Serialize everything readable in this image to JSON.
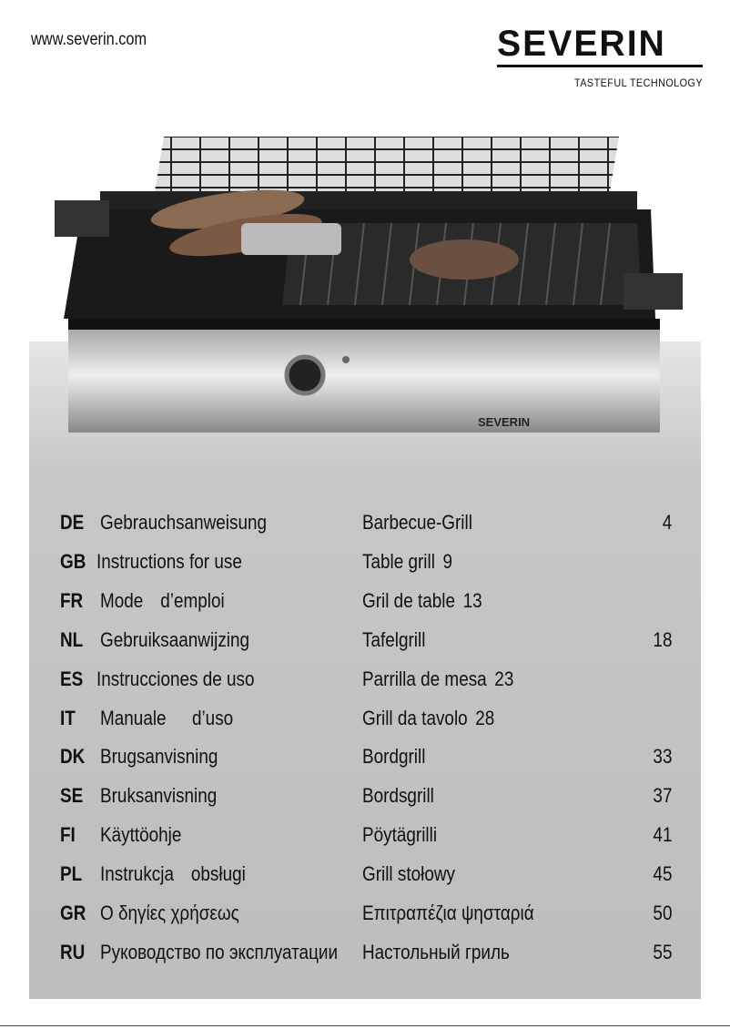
{
  "header": {
    "url": "www.severin.com",
    "brand": "SEVERIN",
    "tagline": "TASTEFUL TECHNOLOGY"
  },
  "product_image": {
    "label": "SEVERIN"
  },
  "languages": [
    {
      "code": "DE",
      "desc": "Gebrauchsanweisung",
      "title": "Barbecue-Grill",
      "page": "4",
      "inline": false
    },
    {
      "code": "GB",
      "desc": "Instructions for use",
      "title": "Table grill",
      "page": "9",
      "inline": true
    },
    {
      "code": "FR",
      "desc": "Mode d’emploi",
      "title": "Gril de table",
      "page": "13",
      "inline": true
    },
    {
      "code": "NL",
      "desc": "Gebruiksaanwijzing",
      "title": "Tafelgrill",
      "page": "18",
      "inline": false
    },
    {
      "code": "ES",
      "desc": "Instrucciones de uso",
      "title": "Parrilla de mesa",
      "page": "23",
      "inline": true
    },
    {
      "code": "IT",
      "desc": "Manuale  d’uso",
      "title": "Grill da tavolo",
      "page": "28",
      "inline": true
    },
    {
      "code": "DK",
      "desc": "Brugsanvisning",
      "title": "Bordgrill",
      "page": "33",
      "inline": false
    },
    {
      "code": "SE",
      "desc": "Bruksanvisning",
      "title": "Bordsgrill",
      "page": "37",
      "inline": false
    },
    {
      "code": "FI",
      "desc": "Käyttöohje",
      "title": "Pöytägrilli",
      "page": "41",
      "inline": false
    },
    {
      "code": "PL",
      "desc": "Instrukcja obsługi",
      "title": "Grill stołowy",
      "page": "45",
      "inline": false
    },
    {
      "code": "GR",
      "desc": "Ο δηγίες χρήσεως",
      "title": "Επιτραπέζια ψησταριά",
      "page": "50",
      "inline": false
    },
    {
      "code": "RU",
      "desc": "Руководство по эксплуатации",
      "title": "Настольный гриль",
      "page": "55",
      "inline": false
    }
  ]
}
